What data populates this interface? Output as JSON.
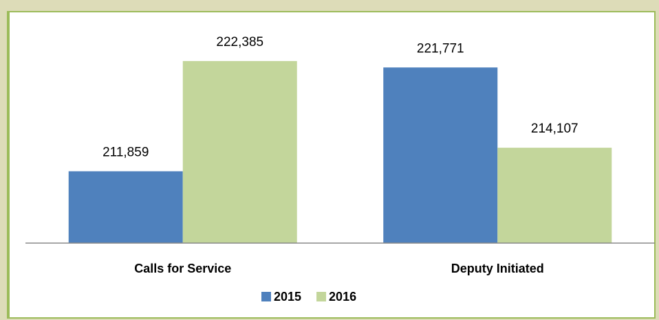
{
  "chart_data": {
    "type": "bar",
    "categories": [
      "Calls for Service",
      "Deputy Initiated"
    ],
    "series": [
      {
        "name": "2015",
        "color": "#4f81bd",
        "values": [
          211859,
          221771
        ],
        "value_labels": [
          "211,859",
          "221,771"
        ]
      },
      {
        "name": "2016",
        "color": "#c3d69b",
        "values": [
          222385,
          214107
        ],
        "value_labels": [
          "222,385",
          "214,107"
        ]
      }
    ],
    "ylim": [
      205000,
      225000
    ],
    "legend": "bottom"
  }
}
